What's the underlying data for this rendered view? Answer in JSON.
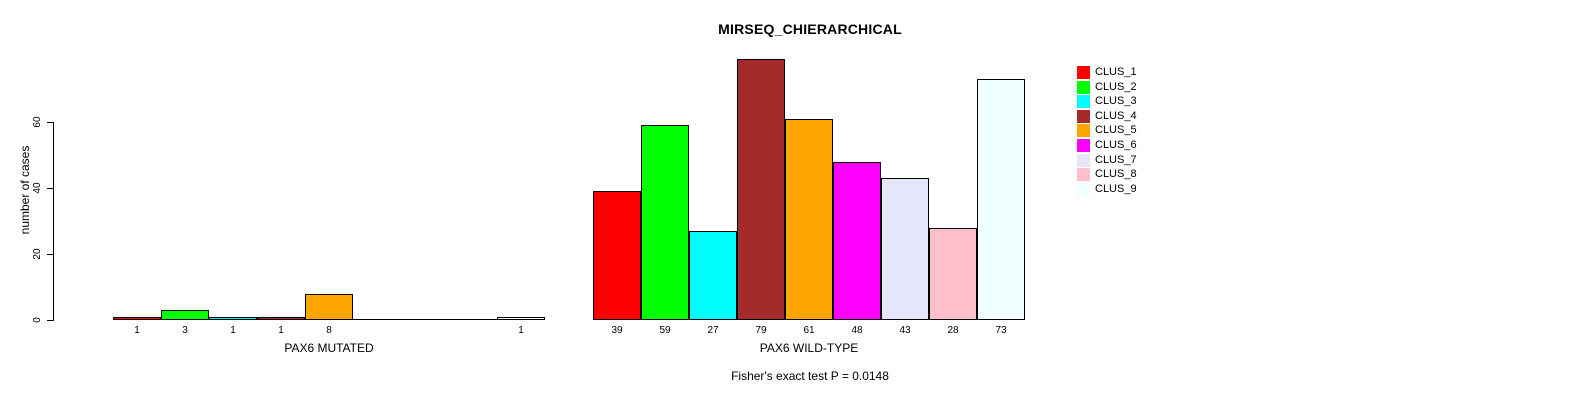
{
  "chart_data": {
    "type": "bar",
    "title": "MIRSEQ_CHIERARCHICAL",
    "ylabel": "number of cases",
    "footnote": "Fisher's exact test P = 0.0148",
    "axis": {
      "yticks": [
        0,
        20,
        40,
        60
      ],
      "ylim": [
        0,
        79
      ],
      "grid": false
    },
    "legend_position": "right-inside",
    "clusters": [
      {
        "name": "CLUS_1",
        "color": "#FF0000"
      },
      {
        "name": "CLUS_2",
        "color": "#00FF00"
      },
      {
        "name": "CLUS_3",
        "color": "#00FFFF"
      },
      {
        "name": "CLUS_4",
        "color": "#A52A2A"
      },
      {
        "name": "CLUS_5",
        "color": "#FFA500"
      },
      {
        "name": "CLUS_6",
        "color": "#FF00FF"
      },
      {
        "name": "CLUS_7",
        "color": "#E6E6FA"
      },
      {
        "name": "CLUS_8",
        "color": "#FFC0CB"
      },
      {
        "name": "CLUS_9",
        "color": "#F0FFFF"
      }
    ],
    "groups": [
      {
        "label": "PAX6 MUTATED",
        "values": [
          1,
          3,
          1,
          1,
          8,
          0,
          0,
          0,
          1
        ]
      },
      {
        "label": "PAX6 WILD-TYPE",
        "values": [
          39,
          59,
          27,
          79,
          61,
          48,
          43,
          28,
          73
        ]
      }
    ]
  }
}
